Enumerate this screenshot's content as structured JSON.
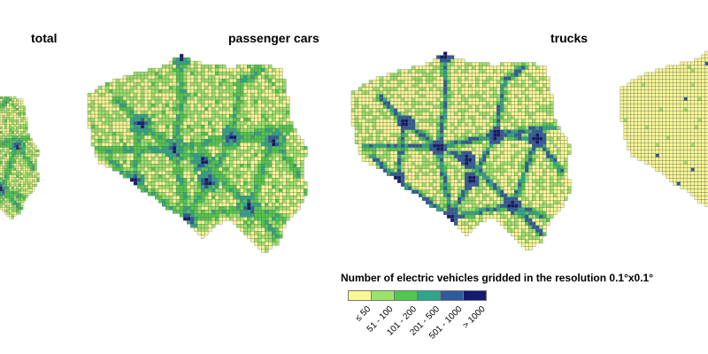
{
  "panels": [
    {
      "id": "total",
      "title": "total"
    },
    {
      "id": "passenger_cars",
      "title": "passenger cars"
    },
    {
      "id": "trucks",
      "title": "trucks"
    },
    {
      "id": "buses",
      "title": ""
    }
  ],
  "legend": {
    "title": "Number of electric vehicles gridded in the resolution 0.1°x0.1°",
    "classes": [
      {
        "label": "≤ 50",
        "color": "#f7f796"
      },
      {
        "label": "51 - 100",
        "color": "#9be26b"
      },
      {
        "label": "101 - 200",
        "color": "#50c84e"
      },
      {
        "label": "201 - 500",
        "color": "#2ea58a"
      },
      {
        "label": "501 - 1000",
        "color": "#2e5b9e"
      },
      {
        "label": "> 1000",
        "color": "#141a6e"
      }
    ]
  },
  "colors": {
    "grid_stroke": "#666655",
    "background": "#ffffff"
  }
}
